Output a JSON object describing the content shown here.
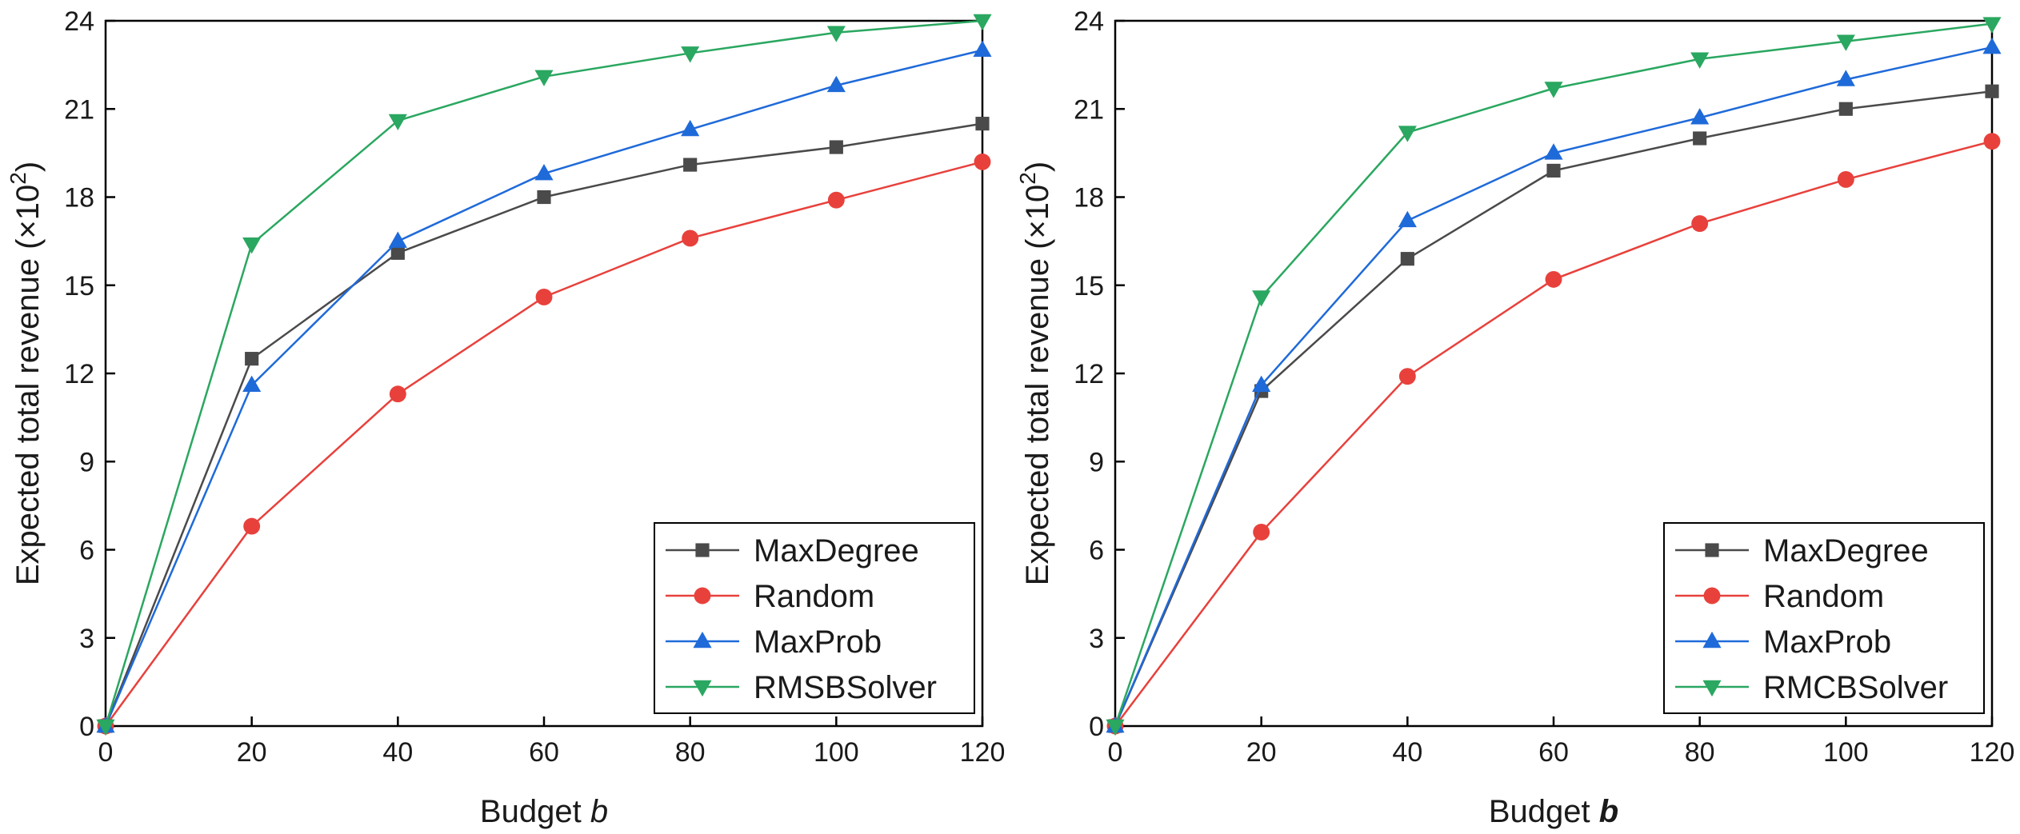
{
  "chart_data": [
    {
      "type": "line",
      "xlabel_text": "Budget ",
      "xlabel_var": "b",
      "ylabel_text": "Expected total revenue (×10",
      "ylabel_sup": "2",
      "ylabel_end": ")",
      "xlim": [
        0,
        120
      ],
      "ylim": [
        0,
        24
      ],
      "xticks": [
        "0",
        "20",
        "40",
        "60",
        "80",
        "100",
        "120"
      ],
      "yticks": [
        "0",
        "3",
        "6",
        "9",
        "12",
        "15",
        "18",
        "21",
        "24"
      ],
      "legend_position": "bottom-right",
      "x": [
        0,
        20,
        40,
        60,
        80,
        100,
        120
      ],
      "series": [
        {
          "name": "MaxDegree",
          "color": "#4a4a4a",
          "marker": "square",
          "values": [
            0,
            12.5,
            16.1,
            18.0,
            19.1,
            19.7,
            20.5
          ]
        },
        {
          "name": "Random",
          "color": "#e8413c",
          "marker": "circle",
          "values": [
            0,
            6.8,
            11.3,
            14.6,
            16.6,
            17.9,
            19.2
          ]
        },
        {
          "name": "MaxProb",
          "color": "#1f6ad9",
          "marker": "triangle-up",
          "values": [
            0,
            11.6,
            16.5,
            18.8,
            20.3,
            21.8,
            23.0
          ]
        },
        {
          "name": "RMSBSolver",
          "color": "#2aa760",
          "marker": "triangle-down",
          "values": [
            0,
            16.4,
            20.6,
            22.1,
            22.9,
            23.6,
            24.0
          ]
        }
      ]
    },
    {
      "type": "line",
      "xlabel_text": "Budget ",
      "xlabel_var": "b",
      "ylabel_text": "Expected total revenue (×10",
      "ylabel_sup": "2",
      "ylabel_end": ")",
      "xlim": [
        0,
        120
      ],
      "ylim": [
        0,
        24
      ],
      "xticks": [
        "0",
        "20",
        "40",
        "60",
        "80",
        "100",
        "120"
      ],
      "yticks": [
        "0",
        "3",
        "6",
        "9",
        "12",
        "15",
        "18",
        "21",
        "24"
      ],
      "legend_position": "bottom-right",
      "x": [
        0,
        20,
        40,
        60,
        80,
        100,
        120
      ],
      "series": [
        {
          "name": "MaxDegree",
          "color": "#4a4a4a",
          "marker": "square",
          "values": [
            0,
            11.4,
            15.9,
            18.9,
            20.0,
            21.0,
            21.6
          ]
        },
        {
          "name": "Random",
          "color": "#e8413c",
          "marker": "circle",
          "values": [
            0,
            6.6,
            11.9,
            15.2,
            17.1,
            18.6,
            19.9
          ]
        },
        {
          "name": "MaxProb",
          "color": "#1f6ad9",
          "marker": "triangle-up",
          "values": [
            0,
            11.6,
            17.2,
            19.5,
            20.7,
            22.0,
            23.1
          ]
        },
        {
          "name": "RMCBSolver",
          "color": "#2aa760",
          "marker": "triangle-down",
          "values": [
            0,
            14.6,
            20.2,
            21.7,
            22.7,
            23.3,
            23.9
          ]
        }
      ]
    }
  ]
}
